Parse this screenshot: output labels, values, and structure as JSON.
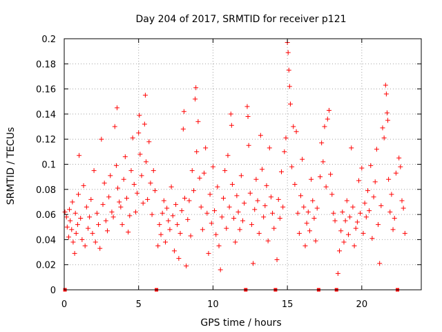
{
  "chart_data": {
    "type": "scatter",
    "title": "Day 204 of 2017, SRMTID for receiver p121",
    "xlabel": "GPS time / hours",
    "ylabel": "SRMTID / TECUs",
    "xlim": [
      0,
      24
    ],
    "ylim": [
      0,
      0.2
    ],
    "grid": true,
    "x_ticks": [
      0,
      5,
      10,
      15,
      20
    ],
    "x_tick_labels": [
      "0",
      "5",
      "10",
      "15",
      "20"
    ],
    "y_ticks": [
      0,
      0.02,
      0.04,
      0.06,
      0.08,
      0.1,
      0.12,
      0.14,
      0.16,
      0.18,
      0.2
    ],
    "y_tick_labels": [
      "0",
      "0.02",
      "0.04",
      "0.06",
      "0.08",
      "0.1",
      "0.12",
      "0.14",
      "0.16",
      "0.18",
      "0.2"
    ],
    "marker": "+",
    "color": "#ff0000",
    "baseline_markers_x": [
      0.05,
      6.2,
      12.2,
      14.2,
      17.1,
      18.3,
      22.4
    ],
    "series": [
      {
        "name": "SRMTID",
        "points": [
          [
            0.05,
            0.062
          ],
          [
            0.15,
            0.058
          ],
          [
            0.2,
            0.05
          ],
          [
            0.3,
            0.042
          ],
          [
            0.35,
            0.064
          ],
          [
            0.4,
            0.055
          ],
          [
            0.5,
            0.048
          ],
          [
            0.55,
            0.07
          ],
          [
            0.6,
            0.038
          ],
          [
            0.7,
            0.029
          ],
          [
            0.75,
            0.061
          ],
          [
            0.8,
            0.045
          ],
          [
            0.9,
            0.052
          ],
          [
            0.95,
            0.076
          ],
          [
            1.0,
            0.107
          ],
          [
            1.1,
            0.057
          ],
          [
            1.2,
            0.04
          ],
          [
            1.3,
            0.083
          ],
          [
            1.4,
            0.035
          ],
          [
            1.5,
            0.066
          ],
          [
            1.6,
            0.049
          ],
          [
            1.7,
            0.058
          ],
          [
            1.8,
            0.072
          ],
          [
            1.9,
            0.045
          ],
          [
            2.0,
            0.095
          ],
          [
            2.1,
            0.038
          ],
          [
            2.2,
            0.061
          ],
          [
            2.3,
            0.052
          ],
          [
            2.4,
            0.033
          ],
          [
            2.5,
            0.12
          ],
          [
            2.6,
            0.068
          ],
          [
            2.7,
            0.085
          ],
          [
            2.8,
            0.055
          ],
          [
            2.9,
            0.047
          ],
          [
            3.0,
            0.074
          ],
          [
            3.1,
            0.091
          ],
          [
            3.2,
            0.062
          ],
          [
            3.3,
            0.058
          ],
          [
            3.4,
            0.13
          ],
          [
            3.5,
            0.099
          ],
          [
            3.55,
            0.145
          ],
          [
            3.6,
            0.081
          ],
          [
            3.7,
            0.07
          ],
          [
            3.8,
            0.066
          ],
          [
            3.9,
            0.052
          ],
          [
            4.0,
            0.088
          ],
          [
            4.1,
            0.106
          ],
          [
            4.2,
            0.073
          ],
          [
            4.3,
            0.046
          ],
          [
            4.4,
            0.059
          ],
          [
            4.5,
            0.095
          ],
          [
            4.6,
            0.121
          ],
          [
            4.7,
            0.084
          ],
          [
            4.8,
            0.062
          ],
          [
            4.9,
            0.077
          ],
          [
            5.0,
            0.125
          ],
          [
            5.05,
            0.139
          ],
          [
            5.1,
            0.108
          ],
          [
            5.2,
            0.091
          ],
          [
            5.3,
            0.069
          ],
          [
            5.4,
            0.132
          ],
          [
            5.45,
            0.155
          ],
          [
            5.5,
            0.102
          ],
          [
            5.6,
            0.072
          ],
          [
            5.7,
            0.118
          ],
          [
            5.8,
            0.085
          ],
          [
            5.9,
            0.06
          ],
          [
            6.0,
            0.095
          ],
          [
            6.1,
            0.079
          ],
          [
            6.3,
            0.035
          ],
          [
            6.4,
            0.052
          ],
          [
            6.5,
            0.044
          ],
          [
            6.6,
            0.061
          ],
          [
            6.7,
            0.071
          ],
          [
            6.8,
            0.038
          ],
          [
            6.9,
            0.065
          ],
          [
            7.0,
            0.055
          ],
          [
            7.1,
            0.048
          ],
          [
            7.2,
            0.082
          ],
          [
            7.3,
            0.059
          ],
          [
            7.4,
            0.031
          ],
          [
            7.5,
            0.068
          ],
          [
            7.6,
            0.052
          ],
          [
            7.7,
            0.025
          ],
          [
            7.8,
            0.045
          ],
          [
            7.9,
            0.063
          ],
          [
            8.0,
            0.128
          ],
          [
            8.05,
            0.142
          ],
          [
            8.1,
            0.073
          ],
          [
            8.2,
            0.019
          ],
          [
            8.3,
            0.056
          ],
          [
            8.4,
            0.071
          ],
          [
            8.5,
            0.043
          ],
          [
            8.6,
            0.095
          ],
          [
            8.7,
            0.079
          ],
          [
            8.8,
            0.152
          ],
          [
            8.85,
            0.161
          ],
          [
            8.9,
            0.11
          ],
          [
            9.0,
            0.134
          ],
          [
            9.1,
            0.089
          ],
          [
            9.2,
            0.066
          ],
          [
            9.3,
            0.048
          ],
          [
            9.4,
            0.093
          ],
          [
            9.5,
            0.113
          ],
          [
            9.6,
            0.061
          ],
          [
            9.7,
            0.029
          ],
          [
            9.8,
            0.076
          ],
          [
            9.9,
            0.053
          ],
          [
            10.0,
            0.098
          ],
          [
            10.1,
            0.063
          ],
          [
            10.2,
            0.044
          ],
          [
            10.3,
            0.082
          ],
          [
            10.4,
            0.035
          ],
          [
            10.5,
            0.016
          ],
          [
            10.6,
            0.058
          ],
          [
            10.7,
            0.073
          ],
          [
            10.8,
            0.095
          ],
          [
            10.9,
            0.049
          ],
          [
            11.0,
            0.107
          ],
          [
            11.1,
            0.066
          ],
          [
            11.2,
            0.14
          ],
          [
            11.25,
            0.131
          ],
          [
            11.3,
            0.084
          ],
          [
            11.4,
            0.057
          ],
          [
            11.5,
            0.038
          ],
          [
            11.6,
            0.075
          ],
          [
            11.7,
            0.062
          ],
          [
            11.8,
            0.048
          ],
          [
            11.9,
            0.091
          ],
          [
            12.0,
            0.055
          ],
          [
            12.1,
            0.069
          ],
          [
            12.3,
            0.146
          ],
          [
            12.35,
            0.138
          ],
          [
            12.4,
            0.115
          ],
          [
            12.5,
            0.077
          ],
          [
            12.6,
            0.052
          ],
          [
            12.7,
            0.021
          ],
          [
            12.8,
            0.064
          ],
          [
            12.9,
            0.088
          ],
          [
            13.0,
            0.071
          ],
          [
            13.1,
            0.045
          ],
          [
            13.2,
            0.123
          ],
          [
            13.3,
            0.096
          ],
          [
            13.4,
            0.058
          ],
          [
            13.5,
            0.067
          ],
          [
            13.6,
            0.083
          ],
          [
            13.7,
            0.039
          ],
          [
            13.8,
            0.113
          ],
          [
            13.9,
            0.074
          ],
          [
            14.0,
            0.061
          ],
          [
            14.1,
            0.049
          ],
          [
            14.3,
            0.024
          ],
          [
            14.4,
            0.072
          ],
          [
            14.5,
            0.057
          ],
          [
            14.6,
            0.094
          ],
          [
            14.7,
            0.066
          ],
          [
            14.8,
            0.11
          ],
          [
            14.9,
            0.121
          ],
          [
            15.0,
            0.197
          ],
          [
            15.05,
            0.189
          ],
          [
            15.1,
            0.175
          ],
          [
            15.15,
            0.162
          ],
          [
            15.2,
            0.148
          ],
          [
            15.3,
            0.098
          ],
          [
            15.4,
            0.13
          ],
          [
            15.5,
            0.084
          ],
          [
            15.6,
            0.126
          ],
          [
            15.7,
            0.061
          ],
          [
            15.8,
            0.045
          ],
          [
            15.9,
            0.075
          ],
          [
            16.0,
            0.104
          ],
          [
            16.1,
            0.066
          ],
          [
            16.2,
            0.035
          ],
          [
            16.3,
            0.053
          ],
          [
            16.4,
            0.062
          ],
          [
            16.5,
            0.047
          ],
          [
            16.6,
            0.088
          ],
          [
            16.7,
            0.071
          ],
          [
            16.8,
            0.057
          ],
          [
            16.9,
            0.039
          ],
          [
            17.0,
            0.065
          ],
          [
            17.2,
            0.09
          ],
          [
            17.3,
            0.117
          ],
          [
            17.4,
            0.102
          ],
          [
            17.5,
            0.13
          ],
          [
            17.6,
            0.082
          ],
          [
            17.7,
            0.136
          ],
          [
            17.8,
            0.143
          ],
          [
            17.9,
            0.092
          ],
          [
            18.0,
            0.076
          ],
          [
            18.1,
            0.061
          ],
          [
            18.2,
            0.055
          ],
          [
            18.4,
            0.013
          ],
          [
            18.5,
            0.031
          ],
          [
            18.6,
            0.047
          ],
          [
            18.7,
            0.062
          ],
          [
            18.8,
            0.038
          ],
          [
            18.9,
            0.055
          ],
          [
            19.0,
            0.071
          ],
          [
            19.1,
            0.044
          ],
          [
            19.2,
            0.058
          ],
          [
            19.3,
            0.113
          ],
          [
            19.4,
            0.066
          ],
          [
            19.5,
            0.035
          ],
          [
            19.6,
            0.049
          ],
          [
            19.7,
            0.054
          ],
          [
            19.8,
            0.087
          ],
          [
            19.9,
            0.061
          ],
          [
            20.0,
            0.097
          ],
          [
            20.1,
            0.045
          ],
          [
            20.2,
            0.069
          ],
          [
            20.3,
            0.058
          ],
          [
            20.4,
            0.079
          ],
          [
            20.5,
            0.063
          ],
          [
            20.6,
            0.099
          ],
          [
            20.7,
            0.041
          ],
          [
            20.8,
            0.074
          ],
          [
            20.9,
            0.086
          ],
          [
            21.0,
            0.112
          ],
          [
            21.1,
            0.052
          ],
          [
            21.2,
            0.021
          ],
          [
            21.3,
            0.067
          ],
          [
            21.4,
            0.129
          ],
          [
            21.5,
            0.121
          ],
          [
            21.6,
            0.163
          ],
          [
            21.65,
            0.156
          ],
          [
            21.7,
            0.141
          ],
          [
            21.75,
            0.135
          ],
          [
            21.8,
            0.088
          ],
          [
            21.9,
            0.062
          ],
          [
            22.0,
            0.076
          ],
          [
            22.1,
            0.048
          ],
          [
            22.2,
            0.057
          ],
          [
            22.3,
            0.093
          ],
          [
            22.5,
            0.105
          ],
          [
            22.6,
            0.098
          ],
          [
            22.7,
            0.071
          ],
          [
            22.8,
            0.065
          ],
          [
            22.9,
            0.045
          ]
        ]
      }
    ]
  }
}
